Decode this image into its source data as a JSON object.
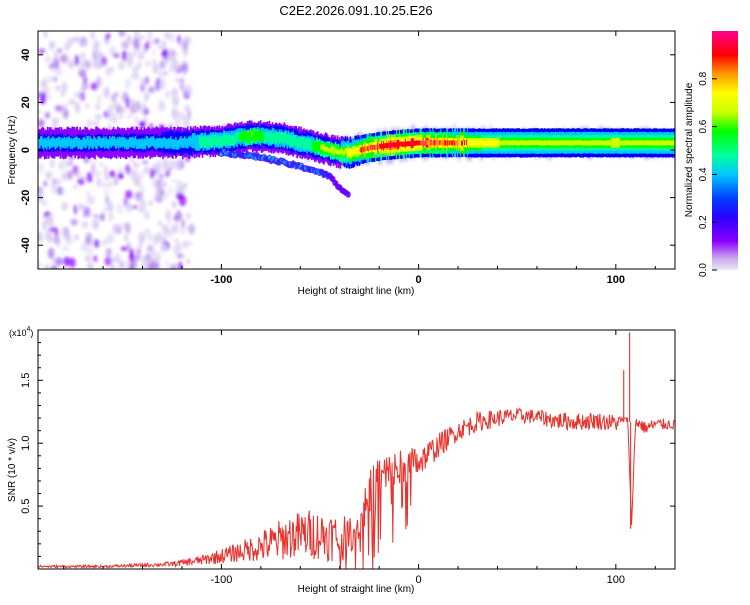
{
  "title": "C2E2.2026.091.10.25.E26",
  "chart_data": [
    {
      "type": "heatmap",
      "title": "C2E2.2026.091.10.25.E26",
      "xlabel": "Height of straight line (km)",
      "ylabel": "Frequency (Hz)",
      "xlim": [
        -193,
        130
      ],
      "ylim": [
        -50,
        50
      ],
      "xticks": [
        -100,
        0,
        100
      ],
      "yticks": [
        -40,
        -20,
        0,
        20,
        40
      ],
      "colorbar": {
        "label": "Normalized spectral amplitude",
        "range": [
          0,
          1
        ],
        "ticks": [
          0.0,
          0.2,
          0.4,
          0.6,
          0.8
        ],
        "colormap": [
          "#e8e0f4",
          "#8b00ff",
          "#0000ff",
          "#00c8ff",
          "#00ff9a",
          "#00ff00",
          "#c8ff00",
          "#ffff00",
          "#ff9a00",
          "#ff0000",
          "#ff0080"
        ]
      },
      "ridge": {
        "x": [
          -193,
          -150,
          -120,
          -100,
          -85,
          -70,
          -60,
          -50,
          -40,
          -35,
          -25,
          -15,
          0,
          20,
          50,
          100,
          130
        ],
        "freq": [
          3,
          3,
          3,
          4,
          6,
          5,
          3,
          1,
          -1,
          -1,
          1,
          2,
          3,
          3,
          3,
          3,
          3
        ],
        "amplitude": [
          0.3,
          0.3,
          0.35,
          0.5,
          0.55,
          0.5,
          0.5,
          0.55,
          0.55,
          0.7,
          0.8,
          0.9,
          0.85,
          0.75,
          0.6,
          0.65,
          0.6
        ]
      },
      "lower_branch": {
        "x": [
          -100,
          -80,
          -65,
          -55,
          -45,
          -40,
          -35
        ],
        "freq": [
          -1,
          -3,
          -6,
          -8,
          -11,
          -16,
          -19
        ]
      },
      "scatter_region": [
        -193,
        -125
      ]
    },
    {
      "type": "line",
      "title": "",
      "xlabel": "Height of straight line (km)",
      "ylabel": "SNR (10 * v/v)",
      "multiplier": "(x10^4)",
      "xlim": [
        -193,
        130
      ],
      "ylim": [
        0,
        1.9
      ],
      "xticks": [
        -100,
        0,
        100
      ],
      "yticks": [
        0.5,
        1.0,
        1.5
      ],
      "color": "#e8312c",
      "series": [
        {
          "name": "SNR",
          "x": [
            -193,
            -160,
            -140,
            -125,
            -110,
            -95,
            -85,
            -75,
            -65,
            -55,
            -45,
            -38,
            -32,
            -26,
            -20,
            -12,
            -5,
            0,
            10,
            20,
            30,
            40,
            50,
            60,
            70,
            80,
            90,
            100,
            106,
            108,
            110,
            115,
            120,
            130
          ],
          "y": [
            0.02,
            0.02,
            0.03,
            0.04,
            0.07,
            0.12,
            0.16,
            0.2,
            0.26,
            0.28,
            0.26,
            0.24,
            0.3,
            0.55,
            0.72,
            0.78,
            0.82,
            0.85,
            0.98,
            1.1,
            1.17,
            1.2,
            1.22,
            1.21,
            1.18,
            1.17,
            1.18,
            1.16,
            1.2,
            0.35,
            1.18,
            1.12,
            1.15,
            1.15
          ],
          "noise_amplitude": [
            0.01,
            0.01,
            0.015,
            0.02,
            0.04,
            0.07,
            0.1,
            0.15,
            0.18,
            0.2,
            0.2,
            0.18,
            0.12,
            0.2,
            0.2,
            0.18,
            0.15,
            0.12,
            0.1,
            0.08,
            0.08,
            0.07,
            0.06,
            0.06,
            0.07,
            0.07,
            0.07,
            0.07,
            0.0,
            0.0,
            0.06,
            0.05,
            0.05,
            0.04
          ],
          "spikes": [
            [
              104,
              1.58
            ],
            [
              105.5,
              1.2
            ],
            [
              107,
              1.88
            ],
            [
              107.5,
              0.32
            ]
          ]
        }
      ],
      "grid": false
    }
  ]
}
